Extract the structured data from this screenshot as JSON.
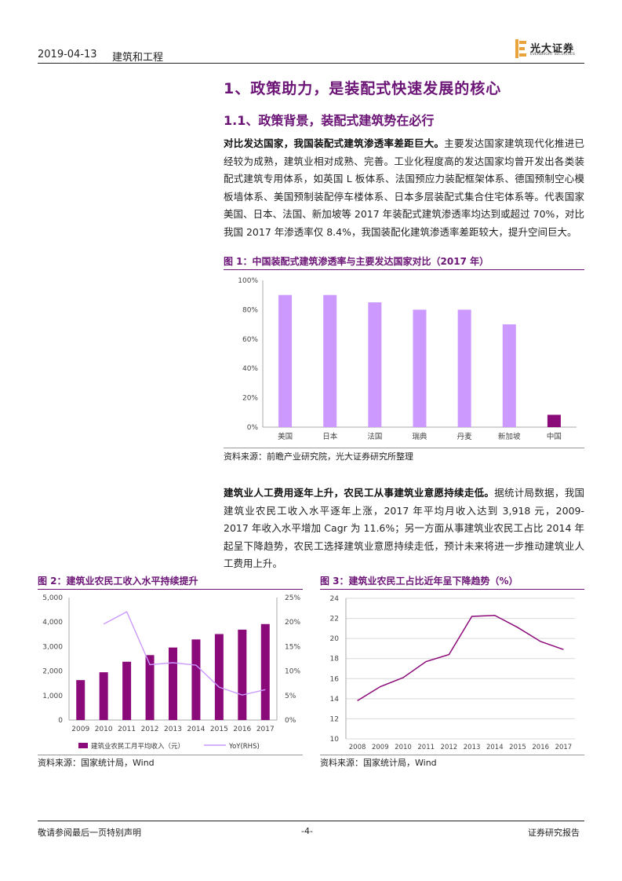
{
  "header": {
    "date": "2019-04-13",
    "sector": "建筑和工程",
    "logo_text": "光大证券",
    "logo_sub": "EVERBRIGHT SECURITIES"
  },
  "section": {
    "h1": "1、政策助力，是装配式快速发展的核心",
    "h2": "1.1、政策背景，装配式建筑势在必行"
  },
  "para1": {
    "lead": "对比发达国家，我国装配式建筑渗透率差距巨大。",
    "body": "主要发达国家建筑现代化推进已经较为成熟，建筑业相对成熟、完善。工业化程度高的发达国家均曾开发出各类装配式建筑专用体系，如英国 L 板体系、法国预应力装配框架体系、德国预制空心模板墙体系、美国预制装配停车楼体系、日本多层装配式集合住宅体系等。代表国家美国、日本、法国、新加坡等 2017 年装配式建筑渗透率均达到或超过 70%，对比我国 2017 年渗透率仅 8.4%，我国装配化建筑渗透率差距较大，提升空间巨大。"
  },
  "figure1": {
    "title": "图 1：中国装配式建筑渗透率与主要发达国家对比（2017 年）",
    "source": "资料来源：前瞻产业研究院，光大证券研究所整理"
  },
  "para2": {
    "lead": "建筑业人工费用逐年上升，农民工从事建筑业意愿持续走低。",
    "body": "据统计局数据，我国建筑业农民工收入水平逐年上涨，2017 年平均月收入达到 3,918 元，2009-2017 年收入水平增加 Cagr 为 11.6%；另一方面从事建筑业农民工占比 2014 年起呈下降趋势，农民工选择建筑业意愿持续走低，预计未来将进一步推动建筑业人工费用上升。"
  },
  "figure2": {
    "title": "图 2：建筑业农民工收入水平持续提升",
    "source": "资料来源：国家统计局，Wind"
  },
  "figure3": {
    "title": "图 3：建筑业农民工占比近年呈下降趋势（%）",
    "source": "资料来源：国家统计局，Wind"
  },
  "footer": {
    "left": "敬请参阅最后一页特别声明",
    "page": "-4-",
    "right": "证券研究报告"
  },
  "colors": {
    "accent": "#6b1476",
    "bar_light": "#cc99ff",
    "bar_dark": "#8b0a7a",
    "line_light": "#cc99ff"
  },
  "chart_data": [
    {
      "type": "bar",
      "categories": [
        "美国",
        "日本",
        "法国",
        "瑞典",
        "丹麦",
        "新加坡",
        "中国"
      ],
      "values": [
        90,
        90,
        85,
        80,
        80,
        70,
        8.4
      ],
      "ylim": [
        0,
        100
      ],
      "yticks": [
        "0%",
        "20%",
        "40%",
        "60%",
        "80%",
        "100%"
      ],
      "grid": false
    },
    {
      "type": "bar",
      "categories": [
        "2009",
        "2010",
        "2011",
        "2012",
        "2013",
        "2014",
        "2015",
        "2016",
        "2017"
      ],
      "series": [
        {
          "name": "建筑业农民工月平均收入（元）",
          "type": "bar",
          "axis": "left",
          "values": [
            1630,
            1950,
            2380,
            2650,
            2960,
            3290,
            3510,
            3690,
            3918
          ]
        },
        {
          "name": "YoY(RHS)",
          "type": "line",
          "axis": "right",
          "values": [
            null,
            19.6,
            22.1,
            11.3,
            11.7,
            11.2,
            6.7,
            5.1,
            6.2
          ]
        }
      ],
      "ylim_left": [
        0,
        5000
      ],
      "ylim_right": [
        0,
        25
      ],
      "yticks_left": [
        "0",
        "1,000",
        "2,000",
        "3,000",
        "4,000",
        "5,000"
      ],
      "yticks_right": [
        "0%",
        "5%",
        "10%",
        "15%",
        "20%",
        "25%"
      ],
      "grid": false
    },
    {
      "type": "line",
      "x": [
        "2008",
        "2009",
        "2010",
        "2011",
        "2012",
        "2013",
        "2014",
        "2015",
        "2016",
        "2017"
      ],
      "series": [
        {
          "values": [
            13.8,
            15.2,
            16.1,
            17.7,
            18.4,
            22.2,
            22.3,
            21.1,
            19.7,
            18.9
          ]
        }
      ],
      "ylim": [
        10,
        24
      ],
      "yticks": [
        "10",
        "12",
        "14",
        "16",
        "18",
        "20",
        "22",
        "24"
      ],
      "grid": true
    }
  ]
}
